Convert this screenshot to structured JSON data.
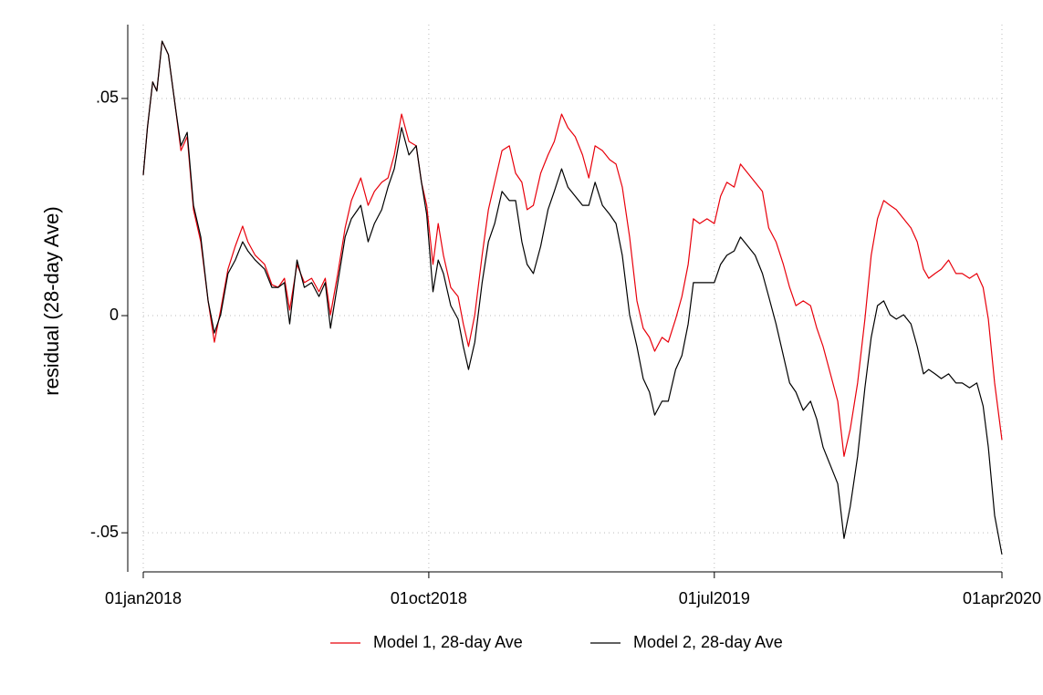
{
  "chart_data": {
    "type": "line",
    "ylabel": "residual (28-day Ave)",
    "x": [
      "2018-01-01",
      "2018-01-05",
      "2018-01-10",
      "2018-01-14",
      "2018-01-19",
      "2018-01-25",
      "2018-02-01",
      "2018-02-06",
      "2018-02-12",
      "2018-02-18",
      "2018-02-25",
      "2018-03-04",
      "2018-03-10",
      "2018-03-16",
      "2018-03-23",
      "2018-03-30",
      "2018-04-06",
      "2018-04-11",
      "2018-04-18",
      "2018-04-27",
      "2018-05-04",
      "2018-05-10",
      "2018-05-16",
      "2018-05-21",
      "2018-05-28",
      "2018-06-04",
      "2018-06-11",
      "2018-06-18",
      "2018-06-24",
      "2018-06-29",
      "2018-07-06",
      "2018-07-13",
      "2018-07-19",
      "2018-07-28",
      "2018-08-04",
      "2018-08-10",
      "2018-08-17",
      "2018-08-23",
      "2018-08-29",
      "2018-09-05",
      "2018-09-12",
      "2018-09-19",
      "2018-09-24",
      "2018-09-29",
      "2018-10-05",
      "2018-10-10",
      "2018-10-15",
      "2018-10-22",
      "2018-10-29",
      "2018-11-03",
      "2018-11-08",
      "2018-11-14",
      "2018-11-21",
      "2018-11-27",
      "2018-12-03",
      "2018-12-10",
      "2018-12-17",
      "2018-12-23",
      "2018-12-29",
      "2019-01-03",
      "2019-01-09",
      "2019-01-16",
      "2019-01-23",
      "2019-01-29",
      "2019-02-05",
      "2019-02-11",
      "2019-02-18",
      "2019-02-25",
      "2019-03-03",
      "2019-03-09",
      "2019-03-16",
      "2019-03-23",
      "2019-03-29",
      "2019-04-04",
      "2019-04-11",
      "2019-04-18",
      "2019-04-24",
      "2019-04-30",
      "2019-05-05",
      "2019-05-12",
      "2019-05-18",
      "2019-05-25",
      "2019-05-31",
      "2019-06-06",
      "2019-06-11",
      "2019-06-17",
      "2019-06-24",
      "2019-07-01",
      "2019-07-07",
      "2019-07-13",
      "2019-07-20",
      "2019-07-26",
      "2019-08-02",
      "2019-08-09",
      "2019-08-16",
      "2019-08-22",
      "2019-08-29",
      "2019-09-05",
      "2019-09-11",
      "2019-09-17",
      "2019-09-24",
      "2019-10-01",
      "2019-10-07",
      "2019-10-13",
      "2019-10-20",
      "2019-10-27",
      "2019-11-02",
      "2019-11-08",
      "2019-11-15",
      "2019-11-22",
      "2019-11-28",
      "2019-12-04",
      "2019-12-10",
      "2019-12-16",
      "2019-12-22",
      "2019-12-29",
      "2020-01-05",
      "2020-01-11",
      "2020-01-17",
      "2020-01-22",
      "2020-01-28",
      "2020-02-03",
      "2020-02-10",
      "2020-02-17",
      "2020-02-23",
      "2020-03-01",
      "2020-03-08",
      "2020-03-14",
      "2020-03-19",
      "2020-03-25",
      "2020-04-01"
    ],
    "series": [
      {
        "name": "Model 1, 28-day Ave",
        "color": "#e8000b",
        "values": [
          0.0324,
          0.0433,
          0.0538,
          0.0517,
          0.0632,
          0.0601,
          0.0475,
          0.038,
          0.0412,
          0.0244,
          0.017,
          0.0034,
          -0.0061,
          0.0013,
          0.0107,
          0.016,
          0.0206,
          0.017,
          0.0139,
          0.0118,
          0.0071,
          0.0065,
          0.0086,
          0.0013,
          0.0118,
          0.0076,
          0.0086,
          0.0055,
          0.0086,
          0.0002,
          0.0097,
          0.0202,
          0.0265,
          0.0317,
          0.0254,
          0.0286,
          0.0307,
          0.0317,
          0.037,
          0.0464,
          0.0401,
          0.0391,
          0.0307,
          0.0254,
          0.0118,
          0.0212,
          0.0139,
          0.0065,
          0.0044,
          -0.0019,
          -0.0071,
          0.0002,
          0.0139,
          0.0244,
          0.0307,
          0.038,
          0.0391,
          0.0328,
          0.0307,
          0.0244,
          0.0254,
          0.0328,
          0.037,
          0.0401,
          0.0464,
          0.0433,
          0.0412,
          0.037,
          0.0317,
          0.0391,
          0.038,
          0.0359,
          0.0349,
          0.0296,
          0.0181,
          0.0034,
          -0.0029,
          -0.005,
          -0.0082,
          -0.005,
          -0.0061,
          -0.0008,
          0.0044,
          0.0118,
          0.0223,
          0.0212,
          0.0223,
          0.0212,
          0.0275,
          0.0307,
          0.0296,
          0.0349,
          0.0328,
          0.0307,
          0.0286,
          0.0202,
          0.017,
          0.0118,
          0.0065,
          0.0023,
          0.0034,
          0.0023,
          -0.0029,
          -0.0071,
          -0.0134,
          -0.0197,
          -0.0324,
          -0.0261,
          -0.0155,
          -0.0008,
          0.0139,
          0.0223,
          0.0265,
          0.0254,
          0.0244,
          0.0223,
          0.0202,
          0.017,
          0.0107,
          0.0086,
          0.0097,
          0.0107,
          0.0128,
          0.0097,
          0.0097,
          0.0086,
          0.0097,
          0.0065,
          -0.0008,
          -0.0155,
          -0.0286
        ]
      },
      {
        "name": "Model 2, 28-day Ave",
        "color": "#000000",
        "values": [
          0.0324,
          0.0433,
          0.0538,
          0.0517,
          0.0632,
          0.0601,
          0.0475,
          0.0391,
          0.0422,
          0.0254,
          0.0181,
          0.0034,
          -0.004,
          0.0002,
          0.0097,
          0.0128,
          0.017,
          0.0149,
          0.0128,
          0.0107,
          0.0065,
          0.0065,
          0.0076,
          -0.0019,
          0.0128,
          0.0065,
          0.0076,
          0.0044,
          0.0076,
          -0.0029,
          0.0076,
          0.0181,
          0.0223,
          0.0254,
          0.017,
          0.0212,
          0.0244,
          0.0296,
          0.0338,
          0.0433,
          0.037,
          0.0391,
          0.0307,
          0.0233,
          0.0055,
          0.0128,
          0.0097,
          0.0023,
          -0.0008,
          -0.0071,
          -0.0124,
          -0.0061,
          0.0076,
          0.017,
          0.0212,
          0.0286,
          0.0265,
          0.0265,
          0.017,
          0.0118,
          0.0097,
          0.016,
          0.0244,
          0.0286,
          0.0338,
          0.0296,
          0.0275,
          0.0254,
          0.0254,
          0.0307,
          0.0254,
          0.0233,
          0.0212,
          0.0139,
          0.0002,
          -0.0071,
          -0.0145,
          -0.0176,
          -0.0229,
          -0.0197,
          -0.0197,
          -0.0124,
          -0.0092,
          -0.0019,
          0.0076,
          0.0076,
          0.0076,
          0.0076,
          0.0118,
          0.0139,
          0.0149,
          0.0181,
          0.016,
          0.0139,
          0.0097,
          0.0044,
          -0.0019,
          -0.0092,
          -0.0155,
          -0.0176,
          -0.0218,
          -0.0197,
          -0.0239,
          -0.0303,
          -0.0345,
          -0.0387,
          -0.0513,
          -0.0439,
          -0.0324,
          -0.0166,
          -0.005,
          0.0023,
          0.0034,
          0.0002,
          -0.0008,
          0.0002,
          -0.0019,
          -0.0071,
          -0.0134,
          -0.0124,
          -0.0134,
          -0.0145,
          -0.0134,
          -0.0155,
          -0.0155,
          -0.0166,
          -0.0155,
          -0.0208,
          -0.0303,
          -0.046,
          -0.055
        ]
      }
    ],
    "xlim": [
      "2018-01-01",
      "2020-04-01"
    ],
    "xticks": [
      {
        "value": "2018-01-01",
        "label": "01jan2018"
      },
      {
        "value": "2018-10-01",
        "label": "01oct2018"
      },
      {
        "value": "2019-07-01",
        "label": "01jul2019"
      },
      {
        "value": "2020-04-01",
        "label": "01apr2020"
      }
    ],
    "ylim": [
      -0.059,
      0.067
    ],
    "yticks": [
      {
        "value": -0.05,
        "label": "-.05"
      },
      0,
      {
        "value": 0.05,
        "label": ".05"
      }
    ],
    "grid": true,
    "legend": "bottom"
  }
}
